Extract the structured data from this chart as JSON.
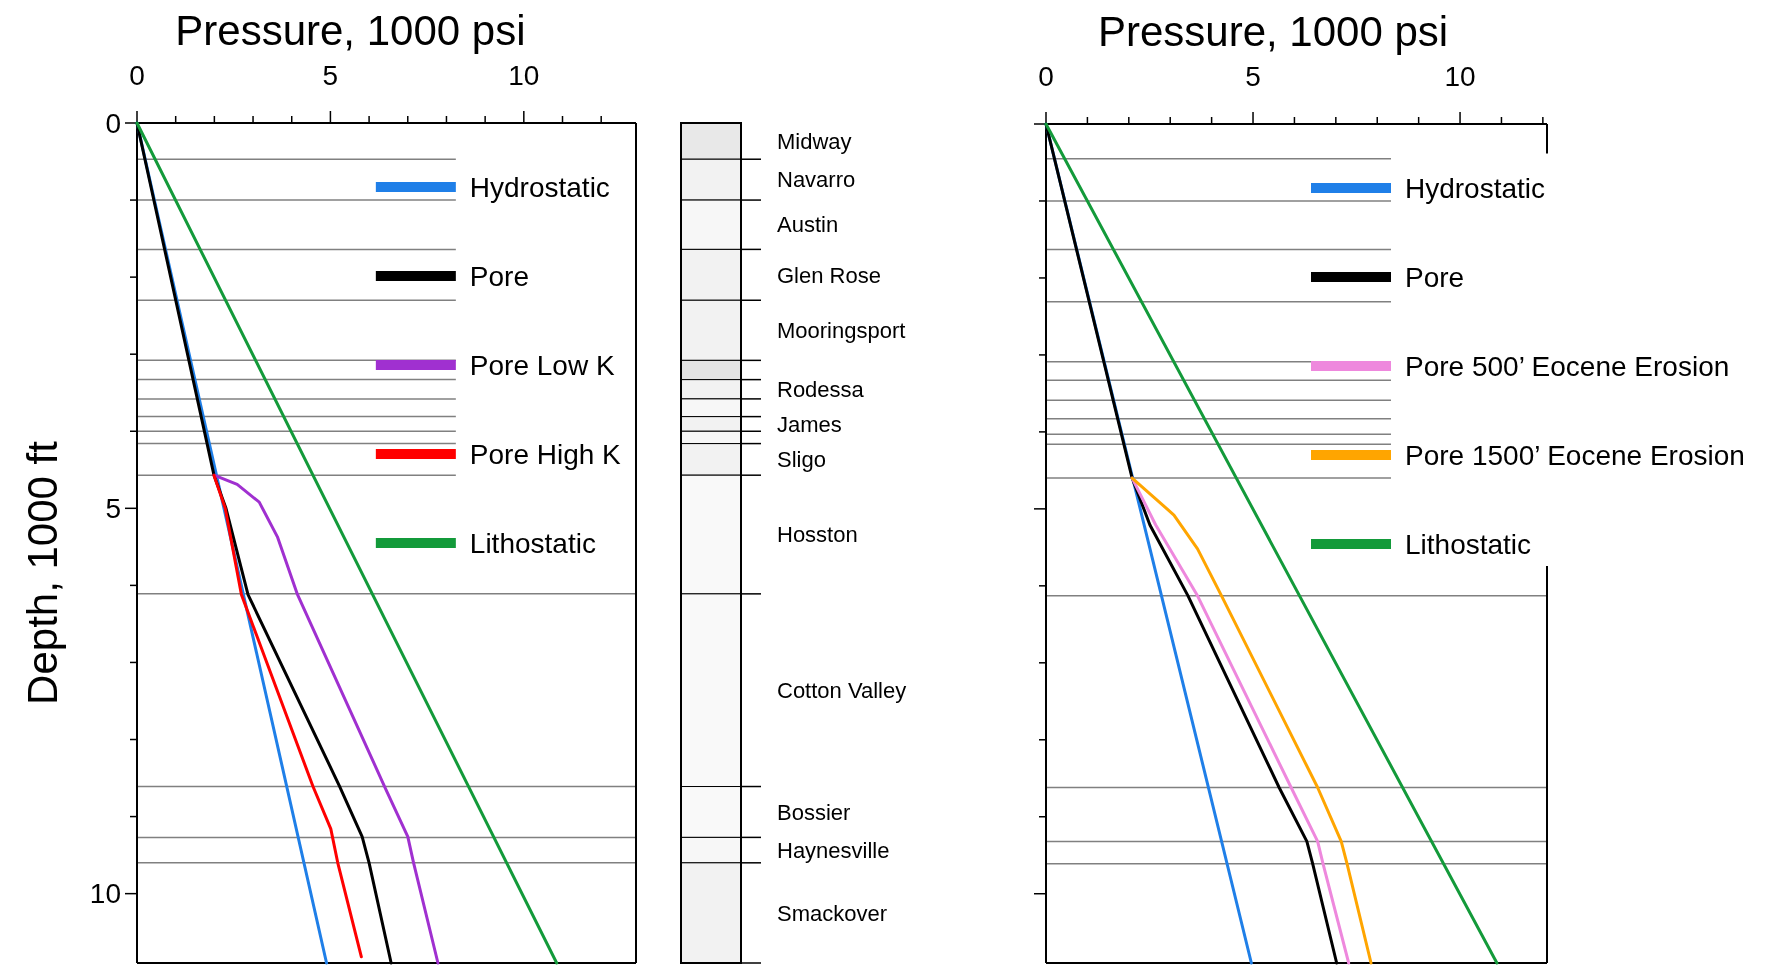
{
  "chart_data": [
    {
      "type": "line",
      "xlabel": "Pressure, 1000 psi",
      "ylabel": "Depth, 1000 ft",
      "xlim": [
        0,
        12.9
      ],
      "xticks": [
        0,
        {
          "value": 1,
          "label": null
        },
        {
          "value": 2,
          "label": null
        },
        {
          "value": 3,
          "label": null
        },
        {
          "value": 4,
          "label": null
        },
        5,
        {
          "value": 6,
          "label": null
        },
        {
          "value": 7,
          "label": null
        },
        {
          "value": 8,
          "label": null
        },
        {
          "value": 9,
          "label": null
        },
        10,
        {
          "value": 11,
          "label": null
        },
        {
          "value": 12,
          "label": null
        }
      ],
      "ylim": [
        10.9,
        0
      ],
      "yticks": [
        0,
        {
          "value": 1,
          "label": null
        },
        {
          "value": 2,
          "label": null
        },
        {
          "value": 3,
          "label": null
        },
        {
          "value": 4,
          "label": null
        },
        5,
        {
          "value": 6,
          "label": null
        },
        {
          "value": 7,
          "label": null
        },
        {
          "value": 8,
          "label": null
        },
        {
          "value": 9,
          "label": null
        },
        10
      ],
      "legend": "top right",
      "line_style": "solid",
      "ref_lines": [
        {
          "axis": "y",
          "value": 0.47,
          "color": "#808080"
        },
        {
          "axis": "y",
          "value": 1.0,
          "color": "#808080"
        },
        {
          "axis": "y",
          "value": 1.64,
          "color": "#808080"
        },
        {
          "axis": "y",
          "value": 2.3,
          "color": "#808080"
        },
        {
          "axis": "y",
          "value": 3.08,
          "color": "#808080"
        },
        {
          "axis": "y",
          "value": 3.33,
          "color": "#808080"
        },
        {
          "axis": "y",
          "value": 3.58,
          "color": "#808080"
        },
        {
          "axis": "y",
          "value": 3.81,
          "color": "#808080"
        },
        {
          "axis": "y",
          "value": 4.0,
          "color": "#808080"
        },
        {
          "axis": "y",
          "value": 4.16,
          "color": "#808080"
        },
        {
          "axis": "y",
          "value": 4.57,
          "color": "#808080"
        },
        {
          "axis": "y",
          "value": 6.11,
          "color": "#808080"
        },
        {
          "axis": "y",
          "value": 8.61,
          "color": "#808080"
        },
        {
          "axis": "y",
          "value": 9.27,
          "color": "#808080"
        },
        {
          "axis": "y",
          "value": 9.6,
          "color": "#808080"
        }
      ],
      "series": [
        {
          "name": "Hydrostatic",
          "color": "#1f7fe8",
          "x": [
            0,
            4.9
          ],
          "values": [
            0,
            10.9
          ]
        },
        {
          "name": "Pore",
          "color": "#000000",
          "x": [
            0,
            1.99,
            2.3,
            2.87,
            5.24,
            5.82,
            6.0,
            6.57
          ],
          "values": [
            0,
            4.57,
            5.0,
            6.12,
            8.61,
            9.26,
            9.6,
            10.9
          ]
        },
        {
          "name": "Pore Low K",
          "color": "#a030d0",
          "x": [
            1.99,
            2.59,
            3.16,
            3.63,
            4.15,
            6.4,
            7.0,
            7.15,
            7.78
          ],
          "values": [
            4.57,
            4.69,
            4.92,
            5.37,
            6.12,
            8.61,
            9.26,
            9.6,
            10.9
          ]
        },
        {
          "name": "Pore High K",
          "color": "#ff0000",
          "x": [
            1.99,
            2.28,
            2.7,
            4.55,
            5.01,
            5.19,
            5.8
          ],
          "values": [
            4.57,
            5.0,
            6.12,
            8.61,
            9.16,
            9.6,
            10.82
          ]
        },
        {
          "name": "Lithostatic",
          "color": "#139a3a",
          "x": [
            0,
            10.85
          ],
          "values": [
            0,
            10.9
          ]
        }
      ]
    },
    {
      "type": "bar",
      "stacked": true,
      "categories": [
        null
      ],
      "ylim": [
        10.9,
        0
      ],
      "tick_labels": false,
      "legend": "right",
      "series": [
        {
          "name": "Midway",
          "color": "#e8e8e8",
          "values": [
            0.47
          ]
        },
        {
          "name": "Navarro",
          "color": "#f2f2f2",
          "values": [
            0.53
          ]
        },
        {
          "name": "Austin",
          "color": "#f7f7f7",
          "values": [
            0.64
          ]
        },
        {
          "name": "Glen Rose",
          "color": "#f2f2f2",
          "values": [
            0.66
          ]
        },
        {
          "name": "Mooringsport",
          "color": "#f2f2f2",
          "values": [
            0.78
          ]
        },
        {
          "color": "#e4e4e4",
          "values": [
            0.25
          ]
        },
        {
          "name": "Rodessa",
          "color": "#f2f2f2",
          "values": [
            0.25
          ]
        },
        {
          "color": "#f7f7f7",
          "values": [
            0.23
          ]
        },
        {
          "name": "James",
          "color": "#f2f2f2",
          "values": [
            0.19
          ]
        },
        {
          "color": "#f7f7f7",
          "values": [
            0.16
          ]
        },
        {
          "name": "Sligo",
          "color": "#f2f2f2",
          "values": [
            0.41
          ]
        },
        {
          "name": "Hosston",
          "color": "#f9f9f9",
          "values": [
            1.54
          ]
        },
        {
          "name": "Cotton Valley",
          "color": "#f9f9f9",
          "values": [
            2.5
          ]
        },
        {
          "name": "Bossier",
          "color": "#f9f9f9",
          "values": [
            0.66
          ]
        },
        {
          "name": "Haynesville",
          "color": "#f7f7f7",
          "values": [
            0.33
          ]
        },
        {
          "name": "Smackover",
          "color": "#f2f2f2",
          "values": [
            1.3
          ]
        }
      ]
    },
    {
      "type": "line",
      "xlabel": "Pressure, 1000 psi",
      "xlim": [
        0,
        12.1
      ],
      "xticks": [
        0,
        {
          "value": 1,
          "label": null
        },
        {
          "value": 2,
          "label": null
        },
        {
          "value": 3,
          "label": null
        },
        {
          "value": 4,
          "label": null
        },
        5,
        {
          "value": 6,
          "label": null
        },
        {
          "value": 7,
          "label": null
        },
        {
          "value": 8,
          "label": null
        },
        {
          "value": 9,
          "label": null
        },
        10,
        {
          "value": 11,
          "label": null
        },
        {
          "value": 12,
          "label": null
        }
      ],
      "ylim": [
        10.9,
        0
      ],
      "yticks": [
        0,
        {
          "value": 1,
          "label": null
        },
        {
          "value": 2,
          "label": null
        },
        {
          "value": 3,
          "label": null
        },
        {
          "value": 4,
          "label": null
        },
        5,
        {
          "value": 6,
          "label": null
        },
        {
          "value": 7,
          "label": null
        },
        {
          "value": 8,
          "label": null
        },
        {
          "value": 9,
          "label": null
        },
        10
      ],
      "tick_labels": "x",
      "legend": "right",
      "line_style": "solid",
      "ref_lines": [
        {
          "axis": "y",
          "value": 0.45,
          "color": "#808080"
        },
        {
          "axis": "y",
          "value": 1.0,
          "color": "#808080"
        },
        {
          "axis": "y",
          "value": 1.63,
          "color": "#808080"
        },
        {
          "axis": "y",
          "value": 2.31,
          "color": "#808080"
        },
        {
          "axis": "y",
          "value": 3.09,
          "color": "#808080"
        },
        {
          "axis": "y",
          "value": 3.33,
          "color": "#808080"
        },
        {
          "axis": "y",
          "value": 3.59,
          "color": "#808080"
        },
        {
          "axis": "y",
          "value": 3.83,
          "color": "#808080"
        },
        {
          "axis": "y",
          "value": 4.03,
          "color": "#808080"
        },
        {
          "axis": "y",
          "value": 4.16,
          "color": "#808080"
        },
        {
          "axis": "y",
          "value": 4.6,
          "color": "#808080"
        },
        {
          "axis": "y",
          "value": 6.13,
          "color": "#808080"
        },
        {
          "axis": "y",
          "value": 8.62,
          "color": "#808080"
        },
        {
          "axis": "y",
          "value": 9.32,
          "color": "#808080"
        },
        {
          "axis": "y",
          "value": 9.61,
          "color": "#808080"
        }
      ],
      "series": [
        {
          "name": "Hydrostatic",
          "color": "#1f7fe8",
          "x": [
            0,
            4.96
          ],
          "values": [
            0,
            10.9
          ]
        },
        {
          "name": "Pore",
          "color": "#000000",
          "x": [
            0,
            2.08,
            2.51,
            3.43,
            5.63,
            6.3,
            6.44,
            7.02
          ],
          "values": [
            0,
            4.6,
            5.21,
            6.13,
            8.62,
            9.32,
            9.61,
            10.9
          ]
        },
        {
          "name": "Pore 500’ Eocene Erosion",
          "color": "#ee88dd",
          "x": [
            2.08,
            2.65,
            3.66,
            5.92,
            6.56,
            6.69,
            7.31
          ],
          "values": [
            4.6,
            5.21,
            6.13,
            8.62,
            9.32,
            9.61,
            10.9
          ]
        },
        {
          "name": "Pore 1500’ Eocene Erosion",
          "color": "#ffa500",
          "x": [
            2.08,
            3.09,
            3.66,
            4.24,
            6.56,
            7.13,
            7.27,
            7.85
          ],
          "values": [
            4.6,
            5.08,
            5.52,
            6.13,
            8.62,
            9.32,
            9.61,
            10.9
          ]
        },
        {
          "name": "Lithostatic",
          "color": "#139a3a",
          "x": [
            0,
            10.89
          ],
          "values": [
            0,
            10.9
          ]
        }
      ]
    }
  ]
}
